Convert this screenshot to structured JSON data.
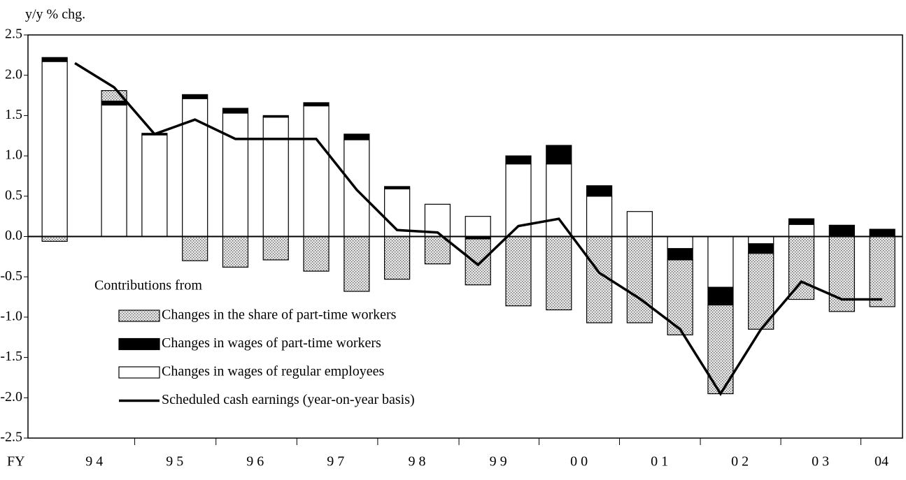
{
  "chart_data": {
    "type": "stacked-bar-line",
    "y_label": "y/y % chg.",
    "x_label": "FY",
    "legend_title": "Contributions from",
    "x": [
      0.66,
      2.13,
      3.13,
      4.13,
      5.13,
      6.13,
      7.13,
      8.13,
      9.13,
      10.13,
      11.13,
      12.13,
      13.13,
      14.13,
      15.13,
      16.13,
      17.13,
      18.13,
      19.13,
      20.13,
      21.13
    ],
    "series": [
      {
        "name": "Changes in the share of part-time workers",
        "color": "#b8b8b8",
        "pattern": "dots",
        "values": [
          -0.06,
          0.13,
          0,
          -0.3,
          -0.38,
          -0.29,
          -0.43,
          -0.68,
          -0.53,
          -0.34,
          -0.57,
          -0.86,
          -0.91,
          -1.07,
          -1.07,
          -0.93,
          -1.1,
          -0.94,
          -0.78,
          -0.93,
          -0.87
        ]
      },
      {
        "name": "Changes in wages of part-time workers",
        "color": "#000000",
        "values": [
          0.05,
          0.05,
          0.02,
          0.05,
          0.06,
          0.02,
          0.04,
          0.07,
          0.03,
          0,
          -0.03,
          0.1,
          0.23,
          0.13,
          0,
          -0.14,
          -0.22,
          -0.12,
          0.07,
          0.14,
          0.09
        ]
      },
      {
        "name": "Changes in wages of regular employees",
        "color": "#ffffff",
        "values": [
          2.17,
          1.63,
          1.26,
          1.71,
          1.53,
          1.48,
          1.62,
          1.2,
          0.59,
          0.4,
          0.25,
          0.9,
          0.9,
          0.5,
          0.31,
          -0.15,
          -0.63,
          -0.09,
          0.15,
          0,
          0
        ]
      },
      {
        "name": "Scheduled cash earnings (year-on-year basis)",
        "color": "#000000",
        "kind": "line",
        "x": [
          1.16,
          2.13,
          3.13,
          4.13,
          5.13,
          6.13,
          7.13,
          8.13,
          9.13,
          10.13,
          11.13,
          12.13,
          13.13,
          14.13,
          15.13,
          16.13,
          17.13,
          18.13,
          19.13,
          20.13,
          21.13
        ],
        "values": [
          2.15,
          1.85,
          1.27,
          1.45,
          1.21,
          1.21,
          1.21,
          0.58,
          0.08,
          0.05,
          -0.35,
          0.13,
          0.22,
          -0.45,
          -0.77,
          -1.15,
          -1.95,
          -1.15,
          -0.56,
          -0.78,
          -0.78
        ]
      }
    ],
    "xlim": [
      0,
      21.63
    ],
    "xticks": [
      {
        "value": 1.64,
        "label": "9 4"
      },
      {
        "value": 3.63,
        "label": "9 5"
      },
      {
        "value": 5.62,
        "label": "9 6"
      },
      {
        "value": 7.61,
        "label": "9 7"
      },
      {
        "value": 9.62,
        "label": "9 8"
      },
      {
        "value": 11.63,
        "label": "9 9"
      },
      {
        "value": 13.63,
        "label": "0 0"
      },
      {
        "value": 15.62,
        "label": "0 1"
      },
      {
        "value": 17.61,
        "label": "0 2"
      },
      {
        "value": 19.6,
        "label": "0 3"
      },
      {
        "value": 21.11,
        "label": "04"
      }
    ],
    "xtick_marks": [
      2.64,
      4.65,
      6.65,
      8.65,
      10.66,
      12.64,
      14.63,
      16.63,
      18.62,
      20.6
    ],
    "ylim": [
      -2.5,
      2.5
    ],
    "yticks": [
      2.5,
      {
        "value": 2,
        "label": "2.0"
      },
      1.5,
      {
        "value": 1,
        "label": "1.0"
      },
      0.5,
      {
        "value": 0,
        "label": "0.0"
      },
      -0.5,
      {
        "value": -1,
        "label": "-1.0"
      },
      -1.5,
      {
        "value": -2,
        "label": "-2.0"
      },
      -2.5
    ]
  }
}
